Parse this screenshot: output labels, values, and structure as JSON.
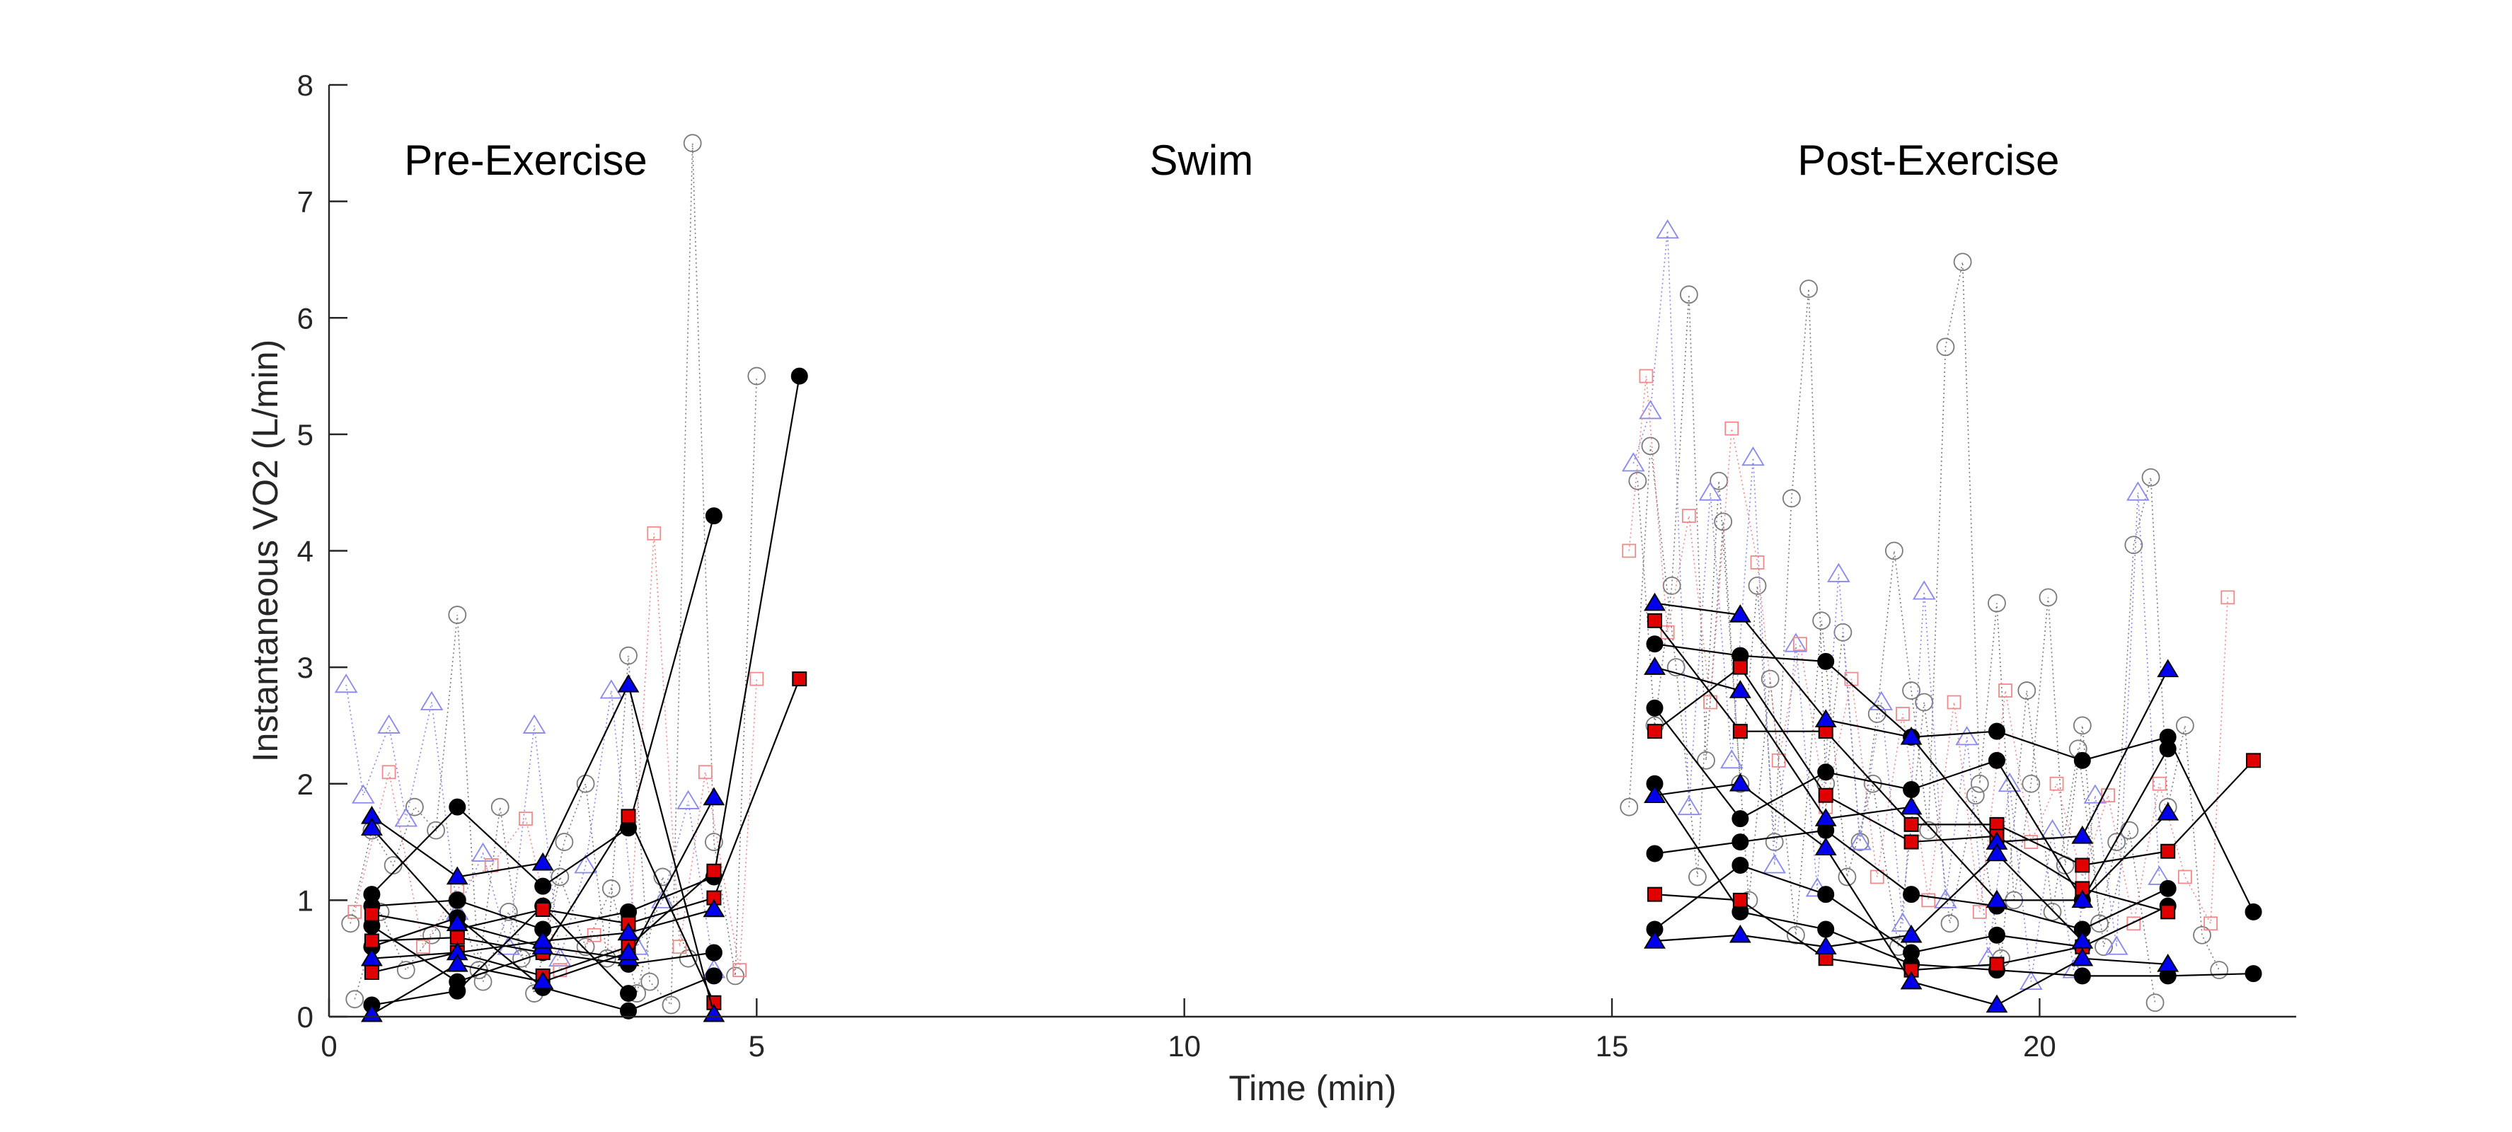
{
  "chart_data": {
    "type": "scatter",
    "xlabel": "Time (min)",
    "ylabel": "Instantaneous VO2 (L/min)",
    "xlim": [
      0,
      23
    ],
    "ylim": [
      0,
      8
    ],
    "xticks": [
      "0",
      "5",
      "10",
      "15",
      "20"
    ],
    "yticks": [
      "0",
      "1",
      "2",
      "3",
      "4",
      "5",
      "6",
      "7",
      "8"
    ],
    "grid": false,
    "annotations": [
      {
        "label": "Pre-Exercise",
        "x": 2.3,
        "y": 7.35
      },
      {
        "label": "Swim",
        "x": 10.2,
        "y": 7.35
      },
      {
        "label": "Post-Exercise",
        "x": 18.7,
        "y": 7.35
      }
    ],
    "colors": {
      "circle": "#000000",
      "triangle": "#0000ee",
      "square": "#e00000",
      "circle_faint": "#7a7a7a",
      "triangle_faint": "#8888ee",
      "square_faint": "#f08a8a"
    },
    "series": [
      {
        "marker": "circle",
        "style": "solid",
        "x": [
          0.5,
          1.5,
          2.5,
          3.5,
          4.5
        ],
        "y": [
          1.05,
          1.8,
          1.12,
          1.62,
          4.3
        ]
      },
      {
        "marker": "circle",
        "style": "solid",
        "x": [
          0.5,
          1.5,
          2.5,
          3.5,
          4.5,
          5.5
        ],
        "y": [
          0.95,
          1.0,
          0.75,
          0.9,
          1.2,
          5.5
        ]
      },
      {
        "marker": "circle",
        "style": "solid",
        "x": [
          0.5,
          1.5,
          2.5,
          3.5,
          4.5
        ],
        "y": [
          0.78,
          0.3,
          0.55,
          0.45,
          0.55
        ]
      },
      {
        "marker": "circle",
        "style": "solid",
        "x": [
          0.5,
          1.5,
          2.5,
          3.5,
          4.5
        ],
        "y": [
          0.6,
          0.85,
          0.25,
          0.05,
          0.35
        ]
      },
      {
        "marker": "circle",
        "style": "solid",
        "x": [
          0.5,
          1.5,
          2.5,
          3.5
        ],
        "y": [
          0.1,
          0.22,
          0.95,
          0.2
        ]
      },
      {
        "marker": "square",
        "style": "solid",
        "x": [
          0.5,
          1.5,
          2.5,
          3.5,
          4.5,
          5.5
        ],
        "y": [
          0.88,
          0.75,
          0.92,
          0.8,
          1.02,
          2.9
        ]
      },
      {
        "marker": "square",
        "style": "solid",
        "x": [
          0.5,
          1.5,
          2.5,
          3.5,
          4.5
        ],
        "y": [
          0.65,
          0.68,
          0.55,
          1.72,
          0.12
        ]
      },
      {
        "marker": "square",
        "style": "solid",
        "x": [
          0.5,
          1.5,
          2.5,
          3.5,
          4.5
        ],
        "y": [
          0.38,
          0.55,
          0.35,
          0.6,
          1.25
        ]
      },
      {
        "marker": "triangle",
        "style": "solid",
        "x": [
          0.5,
          1.5,
          2.5,
          3.5,
          4.5
        ],
        "y": [
          1.72,
          1.2,
          1.32,
          2.85,
          0.02
        ]
      },
      {
        "marker": "triangle",
        "style": "solid",
        "x": [
          0.5,
          1.5,
          2.5,
          3.5,
          4.5
        ],
        "y": [
          1.62,
          0.8,
          0.6,
          0.5,
          1.88
        ]
      },
      {
        "marker": "triangle",
        "style": "solid",
        "x": [
          0.5,
          1.5,
          2.5,
          3.5,
          4.5
        ],
        "y": [
          0.5,
          0.55,
          0.65,
          0.72,
          0.92
        ]
      },
      {
        "marker": "triangle",
        "style": "solid",
        "x": [
          0.5,
          1.5,
          2.5,
          3.5
        ],
        "y": [
          0.02,
          0.45,
          0.3,
          0.55
        ]
      },
      {
        "marker": "circle",
        "style": "dotted",
        "x": [
          0.25,
          0.5,
          0.75,
          1.0,
          1.25,
          1.5,
          1.75,
          2.0,
          2.25,
          2.5,
          2.75,
          3.0,
          3.25,
          3.5,
          3.75,
          4.0,
          4.25,
          4.5,
          4.75,
          5.0
        ],
        "y": [
          0.8,
          1.6,
          1.3,
          1.8,
          1.6,
          3.45,
          0.4,
          1.8,
          0.5,
          0.6,
          1.5,
          2.0,
          0.5,
          3.1,
          0.3,
          0.1,
          7.5,
          1.5,
          0.35,
          5.5
        ]
      },
      {
        "marker": "circle",
        "style": "dotted",
        "x": [
          0.3,
          0.6,
          0.9,
          1.2,
          1.5,
          1.8,
          2.1,
          2.4,
          2.7,
          3.0,
          3.3,
          3.6,
          3.9,
          4.2
        ],
        "y": [
          0.15,
          0.9,
          0.4,
          0.7,
          1.0,
          0.3,
          0.9,
          0.2,
          1.2,
          0.6,
          1.1,
          0.2,
          1.2,
          0.5
        ]
      },
      {
        "marker": "triangle",
        "style": "dotted",
        "x": [
          0.2,
          0.4,
          0.7,
          0.9,
          1.2,
          1.5,
          1.8,
          2.1,
          2.4,
          2.7,
          3.0,
          3.3,
          3.6,
          3.9,
          4.2,
          4.5
        ],
        "y": [
          2.85,
          1.9,
          2.5,
          1.7,
          2.7,
          0.9,
          1.4,
          0.6,
          2.5,
          0.5,
          1.3,
          2.8,
          0.6,
          1.0,
          1.85,
          0.4
        ]
      },
      {
        "marker": "square",
        "style": "dotted",
        "x": [
          0.3,
          0.7,
          1.1,
          1.5,
          1.9,
          2.3,
          2.7,
          3.1,
          3.5,
          3.8,
          4.1,
          4.4,
          4.8,
          5.0
        ],
        "y": [
          0.9,
          2.1,
          0.6,
          1.1,
          1.3,
          1.7,
          0.4,
          0.7,
          0.5,
          4.15,
          0.6,
          2.1,
          0.4,
          2.9
        ]
      },
      {
        "marker": "circle",
        "style": "solid",
        "x": [
          15.5,
          16.5,
          17.5,
          18.5,
          19.5,
          20.5,
          21.5,
          22.5
        ],
        "y": [
          3.2,
          3.1,
          3.05,
          2.4,
          2.45,
          2.2,
          2.4,
          0.9
        ]
      },
      {
        "marker": "circle",
        "style": "solid",
        "x": [
          15.5,
          16.5,
          17.5,
          18.5,
          19.5,
          20.5,
          21.5
        ],
        "y": [
          2.65,
          1.7,
          2.1,
          1.95,
          2.2,
          1.0,
          2.3
        ]
      },
      {
        "marker": "circle",
        "style": "solid",
        "x": [
          15.5,
          16.5,
          17.5,
          18.5,
          19.5,
          20.5,
          21.5
        ],
        "y": [
          1.4,
          1.5,
          1.6,
          1.05,
          0.95,
          0.75,
          1.1
        ]
      },
      {
        "marker": "circle",
        "style": "solid",
        "x": [
          15.5,
          16.5,
          17.5,
          18.5,
          19.5,
          20.5,
          21.5
        ],
        "y": [
          0.75,
          1.3,
          1.05,
          0.55,
          0.7,
          0.6,
          0.95
        ]
      },
      {
        "marker": "circle",
        "style": "solid",
        "x": [
          15.5,
          16.5,
          17.5,
          18.5,
          19.5,
          20.5,
          21.5,
          22.5
        ],
        "y": [
          2.0,
          0.9,
          0.75,
          0.45,
          0.4,
          0.35,
          0.35,
          0.37
        ]
      },
      {
        "marker": "square",
        "style": "solid",
        "x": [
          15.5,
          16.5,
          17.5,
          18.5,
          19.5,
          20.5,
          21.5,
          22.5
        ],
        "y": [
          3.4,
          2.45,
          2.45,
          1.65,
          1.65,
          1.3,
          1.42,
          2.2
        ]
      },
      {
        "marker": "square",
        "style": "solid",
        "x": [
          15.5,
          16.5,
          17.5,
          18.5,
          19.5,
          20.5,
          21.5
        ],
        "y": [
          2.45,
          3.0,
          1.9,
          1.5,
          1.55,
          1.1,
          0.9
        ]
      },
      {
        "marker": "square",
        "style": "solid",
        "x": [
          15.5,
          16.5,
          17.5,
          18.5,
          19.5,
          20.5
        ],
        "y": [
          1.05,
          1.0,
          0.5,
          0.4,
          0.45,
          0.6
        ]
      },
      {
        "marker": "triangle",
        "style": "solid",
        "x": [
          15.5,
          16.5,
          17.5,
          18.5,
          19.5,
          20.5,
          21.5
        ],
        "y": [
          3.55,
          3.45,
          2.55,
          2.4,
          1.5,
          1.55,
          2.98
        ]
      },
      {
        "marker": "triangle",
        "style": "solid",
        "x": [
          15.5,
          16.5,
          17.5,
          18.5,
          19.5,
          20.5,
          21.5
        ],
        "y": [
          3.0,
          2.8,
          1.7,
          1.8,
          1.0,
          1.0,
          1.75
        ]
      },
      {
        "marker": "triangle",
        "style": "solid",
        "x": [
          15.5,
          16.5,
          17.5,
          18.5,
          19.5,
          20.5,
          21.5
        ],
        "y": [
          1.9,
          2.0,
          1.45,
          0.3,
          0.1,
          0.5,
          0.45
        ]
      },
      {
        "marker": "triangle",
        "style": "solid",
        "x": [
          15.5,
          16.5,
          17.5,
          18.5,
          19.5,
          20.5
        ],
        "y": [
          0.65,
          0.7,
          0.6,
          0.7,
          1.4,
          0.65
        ]
      },
      {
        "marker": "circle",
        "style": "dotted",
        "x": [
          15.3,
          15.5,
          15.7,
          15.9,
          16.1,
          16.3,
          16.5,
          16.7,
          16.9,
          17.1,
          17.3,
          17.5,
          17.7,
          17.9,
          18.1,
          18.3,
          18.5,
          18.7,
          18.9,
          19.1,
          19.3,
          19.5,
          19.7,
          19.9,
          20.1,
          20.3,
          20.5,
          20.7,
          20.9,
          21.1,
          21.3,
          21.5,
          21.7,
          21.9,
          22.1
        ],
        "y": [
          4.6,
          2.5,
          3.7,
          6.2,
          2.2,
          4.25,
          2.0,
          3.7,
          1.5,
          4.45,
          6.25,
          2.0,
          3.3,
          1.5,
          2.6,
          4.0,
          2.8,
          1.6,
          5.75,
          6.48,
          2.0,
          3.55,
          1.0,
          2.0,
          3.6,
          1.3,
          2.5,
          0.8,
          1.5,
          4.05,
          4.63,
          1.8,
          2.5,
          0.7,
          0.4
        ]
      },
      {
        "marker": "circle",
        "style": "dotted",
        "x": [
          15.2,
          15.45,
          15.75,
          16.0,
          16.25,
          16.6,
          16.85,
          17.15,
          17.45,
          17.75,
          18.05,
          18.35,
          18.65,
          18.95,
          19.25,
          19.55,
          19.85,
          20.15,
          20.45,
          20.75,
          21.05,
          21.35
        ],
        "y": [
          1.8,
          4.9,
          3.0,
          1.2,
          4.6,
          1.0,
          2.9,
          0.7,
          3.4,
          1.2,
          2.0,
          0.6,
          2.7,
          0.8,
          1.9,
          0.5,
          2.8,
          0.9,
          2.3,
          0.6,
          1.6,
          0.12
        ]
      },
      {
        "marker": "triangle",
        "style": "dotted",
        "x": [
          15.25,
          15.45,
          15.65,
          15.9,
          16.15,
          16.4,
          16.65,
          16.9,
          17.15,
          17.4,
          17.65,
          17.9,
          18.15,
          18.4,
          18.65,
          18.9,
          19.15,
          19.4,
          19.65,
          19.9,
          20.15,
          20.4,
          20.65,
          20.9,
          21.15,
          21.4
        ],
        "y": [
          4.75,
          5.2,
          6.75,
          1.8,
          4.5,
          2.2,
          4.8,
          1.3,
          3.2,
          1.1,
          3.8,
          1.5,
          2.7,
          0.8,
          3.65,
          1.0,
          2.4,
          0.5,
          2.0,
          0.3,
          1.6,
          0.4,
          1.9,
          0.6,
          4.5,
          1.2
        ]
      },
      {
        "marker": "square",
        "style": "dotted",
        "x": [
          15.2,
          15.4,
          15.65,
          15.9,
          16.15,
          16.4,
          16.7,
          16.95,
          17.2,
          17.5,
          17.8,
          18.1,
          18.4,
          18.7,
          19.0,
          19.3,
          19.6,
          19.9,
          20.2,
          20.5,
          20.8,
          21.1,
          21.4,
          21.7,
          22.0,
          22.2
        ],
        "y": [
          4.0,
          5.5,
          3.3,
          4.3,
          2.7,
          5.05,
          3.9,
          2.2,
          3.2,
          1.8,
          2.9,
          1.2,
          2.6,
          1.0,
          2.7,
          0.9,
          2.8,
          1.5,
          2.0,
          1.2,
          1.9,
          0.8,
          2.0,
          1.2,
          0.8,
          3.6
        ]
      }
    ]
  }
}
